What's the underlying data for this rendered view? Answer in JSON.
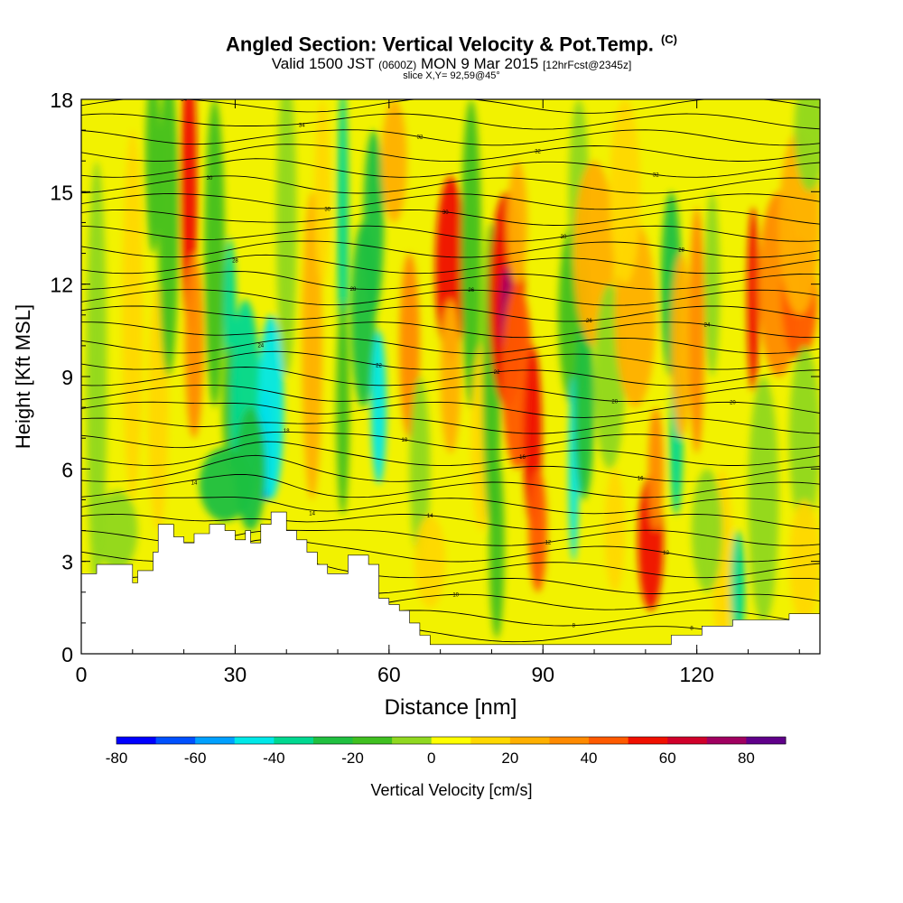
{
  "header": {
    "title": "Angled Section: Vertical Velocity & Pot.Temp.",
    "title_unit": "(C)",
    "valid_prefix": "Valid 1500 JST",
    "valid_utc": "(0600Z)",
    "valid_date": "MON 9 Mar 2015",
    "forecast": "[12hrFcst@2345z]",
    "slice": "slice X,Y= 92,59@45°"
  },
  "chart_data": {
    "type": "heatmap",
    "xlabel": "Distance [nm]",
    "ylabel": "Height [Kft MSL]",
    "xlim": [
      0,
      144
    ],
    "ylim": [
      0,
      18
    ],
    "xticks": [
      0,
      30,
      60,
      90,
      120
    ],
    "yticks": [
      0,
      3,
      6,
      9,
      12,
      15,
      18
    ],
    "colorbar": {
      "label": "Vertical Velocity [cm/s]",
      "range": [
        -80,
        90
      ],
      "step": 10,
      "tick_labels": [
        -80,
        -60,
        -40,
        -20,
        0,
        20,
        40,
        60,
        80
      ],
      "colors": [
        "#0000ff",
        "#0050ff",
        "#00a0ff",
        "#00e8e8",
        "#00d890",
        "#20c040",
        "#40c020",
        "#90d820",
        "#ffff00",
        "#ffd800",
        "#ffb000",
        "#ff8a00",
        "#ff5a00",
        "#f01000",
        "#d0002a",
        "#a00060",
        "#60008a"
      ]
    },
    "terrain_kft": [
      [
        0,
        2.6
      ],
      [
        3,
        2.6
      ],
      [
        3,
        2.9
      ],
      [
        10,
        2.9
      ],
      [
        10,
        2.3
      ],
      [
        11,
        2.3
      ],
      [
        11,
        2.7
      ],
      [
        14,
        2.7
      ],
      [
        14,
        3.3
      ],
      [
        15,
        3.3
      ],
      [
        15,
        4.2
      ],
      [
        18,
        4.2
      ],
      [
        18,
        3.8
      ],
      [
        20,
        3.8
      ],
      [
        20,
        3.6
      ],
      [
        22,
        3.6
      ],
      [
        22,
        3.9
      ],
      [
        25,
        3.9
      ],
      [
        25,
        4.2
      ],
      [
        28,
        4.2
      ],
      [
        28,
        4.0
      ],
      [
        30,
        4.0
      ],
      [
        30,
        3.7
      ],
      [
        32,
        3.7
      ],
      [
        32,
        4.0
      ],
      [
        33,
        4.0
      ],
      [
        33,
        3.6
      ],
      [
        35,
        3.6
      ],
      [
        35,
        4.2
      ],
      [
        37,
        4.2
      ],
      [
        37,
        4.6
      ],
      [
        40,
        4.6
      ],
      [
        40,
        4.0
      ],
      [
        42,
        4.0
      ],
      [
        42,
        3.7
      ],
      [
        44,
        3.7
      ],
      [
        44,
        3.3
      ],
      [
        46,
        3.3
      ],
      [
        46,
        2.9
      ],
      [
        48,
        2.9
      ],
      [
        48,
        2.6
      ],
      [
        52,
        2.6
      ],
      [
        52,
        3.2
      ],
      [
        56,
        3.2
      ],
      [
        56,
        2.9
      ],
      [
        58,
        2.9
      ],
      [
        58,
        1.8
      ],
      [
        60,
        1.8
      ],
      [
        60,
        1.6
      ],
      [
        62,
        1.6
      ],
      [
        62,
        1.4
      ],
      [
        64,
        1.4
      ],
      [
        64,
        1.0
      ],
      [
        66,
        1.0
      ],
      [
        66,
        0.6
      ],
      [
        68,
        0.6
      ],
      [
        68,
        0.3
      ],
      [
        115,
        0.3
      ],
      [
        115,
        0.6
      ],
      [
        121,
        0.6
      ],
      [
        121,
        0.9
      ],
      [
        127,
        0.9
      ],
      [
        127,
        1.1
      ],
      [
        138,
        1.1
      ],
      [
        138,
        1.3
      ],
      [
        144,
        1.3
      ]
    ],
    "isentrope_labels": [
      "34",
      "34",
      "32",
      "32",
      "32",
      "30",
      "30",
      "30",
      "30",
      "28",
      "28",
      "28",
      "26",
      "26",
      "24",
      "24",
      "22",
      "22",
      "20",
      "20",
      "18",
      "18",
      "16",
      "16",
      "14",
      "14",
      "14",
      "12",
      "12",
      "10",
      "10",
      "10",
      "8",
      "8"
    ]
  }
}
